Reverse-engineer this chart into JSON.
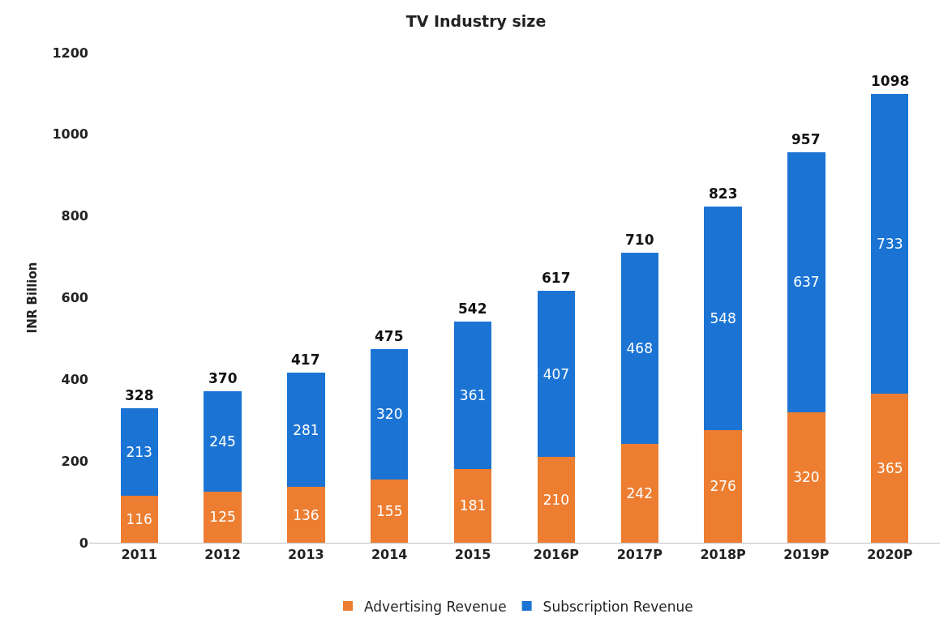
{
  "chart_data": {
    "type": "bar",
    "title": "TV Industry size",
    "ylabel": "INR Billion",
    "categories": [
      "2011",
      "2012",
      "2013",
      "2014",
      "2015",
      "2016P",
      "2017P",
      "2018P",
      "2019P",
      "2020P"
    ],
    "series": [
      {
        "name": "Advertising Revenue",
        "color": "#ed7d31",
        "values": [
          116,
          125,
          136,
          155,
          181,
          210,
          242,
          276,
          320,
          365
        ]
      },
      {
        "name": "Subscription Revenue",
        "color": "#1b74d4",
        "values": [
          213,
          245,
          281,
          320,
          361,
          407,
          468,
          548,
          637,
          733
        ]
      }
    ],
    "stacked": true,
    "data_labels": true,
    "totals": [
      "328",
      "370",
      "417",
      "475",
      "542",
      "617",
      "710",
      "823",
      "957",
      "1098"
    ],
    "ylim": [
      0,
      1200
    ],
    "yticks": [
      0,
      200,
      400,
      600,
      800,
      1000,
      1200
    ],
    "grid": false,
    "legend": "bottom"
  }
}
